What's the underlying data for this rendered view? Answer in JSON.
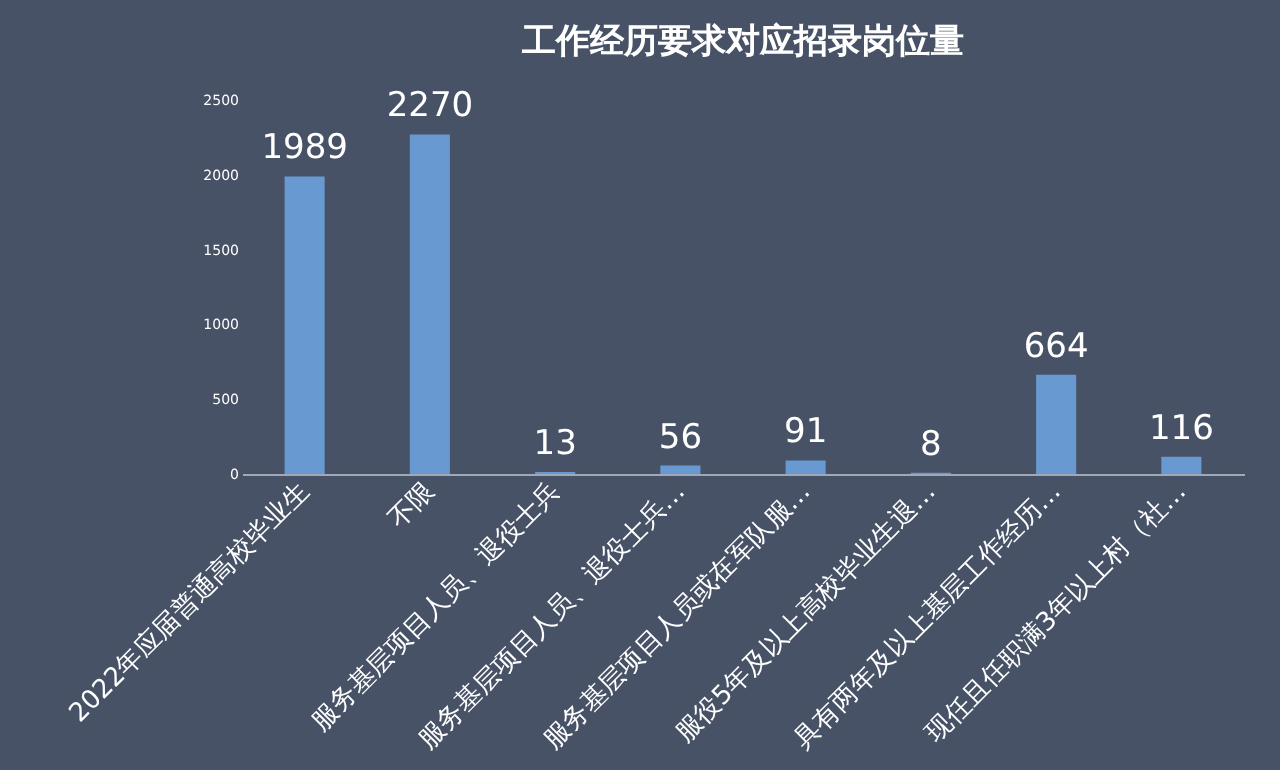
{
  "chart_data": {
    "type": "bar",
    "title": "工作经历要求对应招录岗位量",
    "categories": [
      "2022年应届普通高校毕业生",
      "不限",
      "服务基层项目人员、退役士兵",
      "服务基层项目人员、退役士兵…",
      "服务基层项目人员或在军队服…",
      "服役5年及以上高校毕业生退…",
      "具有两年及以上基层工作经历…",
      "现任且任职满3年以上村（社…"
    ],
    "values": [
      1989,
      2270,
      13,
      56,
      91,
      8,
      664,
      116
    ],
    "color": "#6899d0",
    "ylim": [
      0,
      2500
    ],
    "yticks": [
      0,
      500,
      1000,
      1500,
      2000,
      2500
    ],
    "data_labels": true,
    "grid": false
  }
}
